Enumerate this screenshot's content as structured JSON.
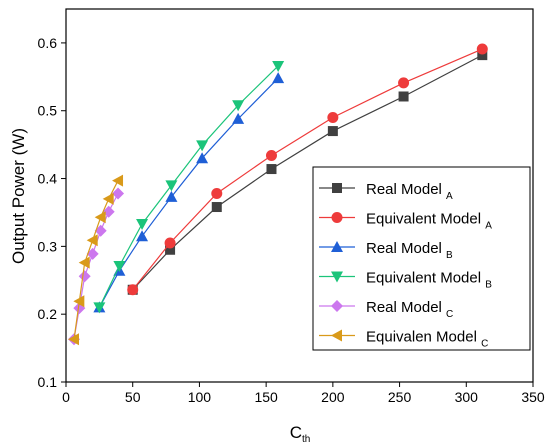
{
  "chart_data": {
    "type": "line",
    "xlabel": "C",
    "xlabel_sub": "th",
    "ylabel": "Output Power (W)",
    "xlim": [
      0,
      350
    ],
    "ylim": [
      0.1,
      0.65
    ],
    "xticks": [
      0,
      50,
      100,
      150,
      200,
      250,
      300,
      350
    ],
    "yticks": [
      0.1,
      0.2,
      0.3,
      0.4,
      0.5,
      0.6
    ],
    "xtick_labels": [
      "0",
      "50",
      "100",
      "150",
      "200",
      "250",
      "300",
      "350"
    ],
    "ytick_labels": [
      "0.1",
      "0.2",
      "0.3",
      "0.4",
      "0.5",
      "0.6"
    ],
    "grid": false,
    "legend_position": "right",
    "series": [
      {
        "name": "Real Model",
        "sub": "A",
        "color": "#404040",
        "marker": "square",
        "x": [
          50,
          78,
          113,
          154,
          200,
          253,
          312
        ],
        "y": [
          0.236,
          0.295,
          0.358,
          0.414,
          0.47,
          0.521,
          0.582
        ]
      },
      {
        "name": "Equivalent Model",
        "sub": "A",
        "color": "#ee3b3b",
        "marker": "circle",
        "x": [
          50,
          78,
          113,
          154,
          200,
          253,
          312
        ],
        "y": [
          0.236,
          0.305,
          0.378,
          0.434,
          0.49,
          0.541,
          0.591
        ]
      },
      {
        "name": "Real Model",
        "sub": "B",
        "color": "#1f5fd6",
        "marker": "triangle-up",
        "x": [
          25,
          40,
          57,
          79,
          102,
          129,
          159
        ],
        "y": [
          0.21,
          0.264,
          0.315,
          0.373,
          0.43,
          0.488,
          0.548
        ]
      },
      {
        "name": "Equivalent Model",
        "sub": "B",
        "color": "#1bc47a",
        "marker": "triangle-down",
        "x": [
          25,
          40,
          57,
          79,
          102,
          129,
          159
        ],
        "y": [
          0.21,
          0.271,
          0.333,
          0.39,
          0.449,
          0.508,
          0.566
        ]
      },
      {
        "name": "Real Model",
        "sub": "C",
        "color": "#cc77ee",
        "marker": "diamond",
        "x": [
          6,
          10,
          14,
          20,
          26,
          32,
          39
        ],
        "y": [
          0.163,
          0.209,
          0.256,
          0.289,
          0.323,
          0.351,
          0.378
        ]
      },
      {
        "name": "Equivalen Model",
        "sub": "C",
        "color": "#d99a1a",
        "marker": "triangle-left",
        "x": [
          6,
          10,
          14,
          20,
          26,
          32,
          39
        ],
        "y": [
          0.163,
          0.219,
          0.276,
          0.309,
          0.343,
          0.37,
          0.397
        ]
      }
    ]
  }
}
